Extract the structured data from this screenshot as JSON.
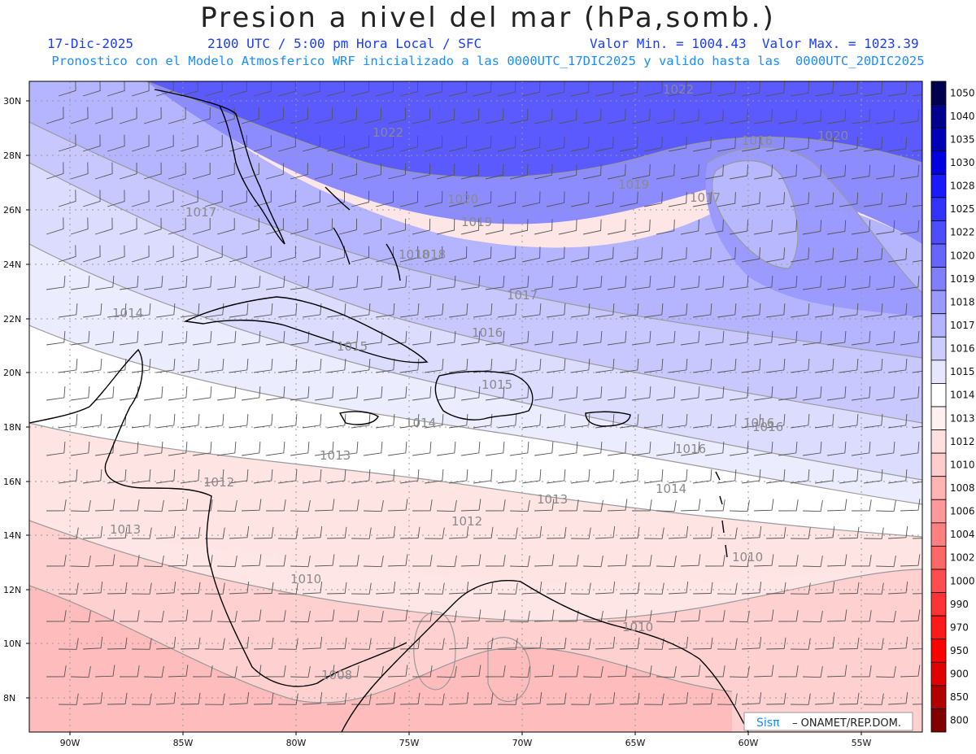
{
  "header": {
    "title": "Presion a nivel del mar (hPa,somb.)",
    "date": "17-Dic-2025",
    "time": "2100 UTC / 5:00 pm Hora Local / SFC",
    "minmax": "Valor Min. = 1004.43  Valor Max. = 1023.39",
    "model_line": "Pronostico con el Modelo Atmosferico WRF inicializado a las 0000UTC_17DIC2025 y valido hasta las  0000UTC_20DIC2025"
  },
  "axes": {
    "lat_labels": [
      "30N",
      "28N",
      "26N",
      "24N",
      "22N",
      "20N",
      "18N",
      "16N",
      "14N",
      "12N",
      "10N",
      "8N"
    ],
    "lon_labels": [
      "90W",
      "85W",
      "80W",
      "75W",
      "70W",
      "65W",
      "60W",
      "55W"
    ]
  },
  "colorbar": {
    "levels": [
      "1050",
      "1040",
      "1035",
      "1030",
      "1028",
      "1025",
      "1022",
      "1020",
      "1019",
      "1018",
      "1017",
      "1016",
      "1015",
      "1014",
      "1013",
      "1012",
      "1010",
      "1008",
      "1006",
      "1004",
      "1002",
      "1000",
      "990",
      "970",
      "950",
      "900",
      "850",
      "800"
    ],
    "colors": [
      "#00004d",
      "#00008f",
      "#0000b8",
      "#0000e0",
      "#1a1aff",
      "#3333ff",
      "#4d4dff",
      "#6666ff",
      "#8080ff",
      "#9999ff",
      "#b3b3ff",
      "#ccccff",
      "#e6e6ff",
      "#ffffff",
      "#fff0f0",
      "#ffe0e0",
      "#ffcccc",
      "#ffb3b3",
      "#ff9999",
      "#ff8080",
      "#ff6666",
      "#ff4d4d",
      "#ff3333",
      "#ff1a1a",
      "#ff0000",
      "#e00000",
      "#b30000",
      "#800000"
    ]
  },
  "contour_labels": [
    "1022",
    "1022",
    "1020",
    "1019",
    "1018",
    "1017",
    "1017",
    "1016",
    "1014",
    "1015",
    "1016",
    "1015",
    "1014",
    "1013",
    "1012",
    "1013",
    "1012",
    "1013",
    "1014",
    "1016",
    "1016",
    "1010",
    "1010",
    "1010",
    "1008",
    "1020",
    "1019",
    "1018",
    "1017",
    "1016"
  ],
  "credit": {
    "brand": "Sisπ",
    "text": "– ONAMET/REP.DOM."
  }
}
